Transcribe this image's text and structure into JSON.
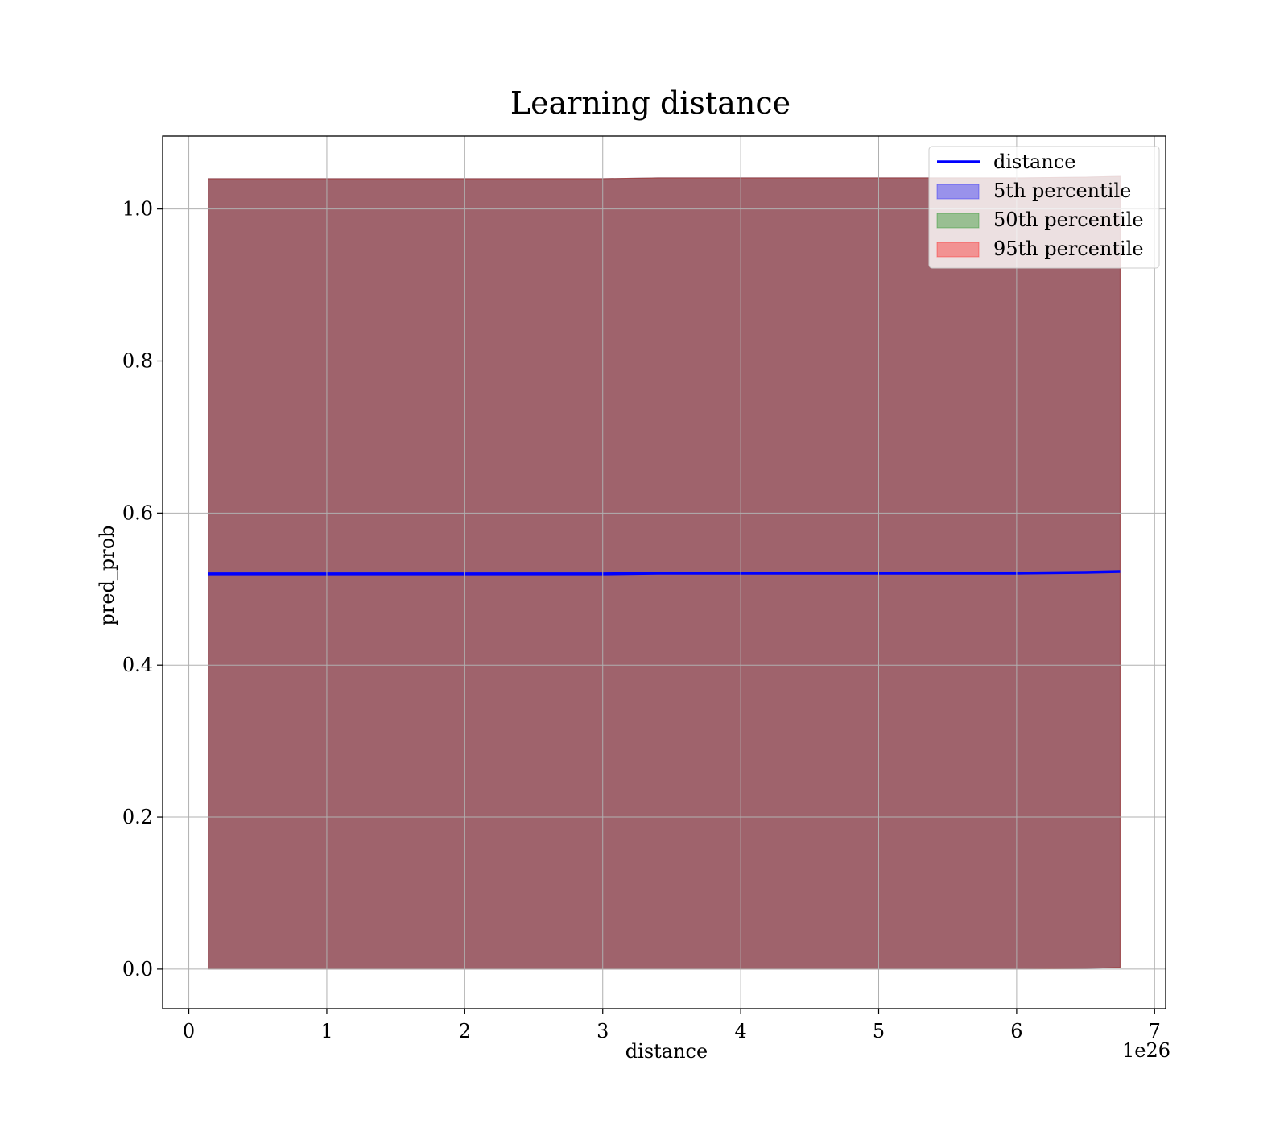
{
  "chart_data": {
    "type": "area",
    "title": "Learning distance",
    "xlabel": "distance",
    "ylabel": "pred_prob",
    "x_offset_label": "1e26",
    "xlim": [
      -0.19,
      7.08
    ],
    "ylim": [
      -0.052,
      1.096
    ],
    "x_ticks": [
      0,
      1,
      2,
      3,
      4,
      5,
      6,
      7
    ],
    "y_ticks": [
      0.0,
      0.2,
      0.4,
      0.6,
      0.8,
      1.0
    ],
    "y_tick_labels": [
      "0.0",
      "0.2",
      "0.4",
      "0.6",
      "0.8",
      "1.0"
    ],
    "grid": true,
    "legend_position": "top-right",
    "x": [
      0.14,
      0.5,
      1.0,
      1.5,
      2.0,
      2.5,
      3.0,
      3.4,
      4.0,
      4.5,
      5.0,
      5.5,
      6.0,
      6.5,
      6.75
    ],
    "series": [
      {
        "name": "distance",
        "kind": "line",
        "color": "#0000ff",
        "values": [
          0.52,
          0.52,
          0.52,
          0.52,
          0.52,
          0.52,
          0.52,
          0.521,
          0.521,
          0.521,
          0.521,
          0.521,
          0.521,
          0.522,
          0.523
        ]
      },
      {
        "name": "5th percentile",
        "kind": "band",
        "color": "#0000ff",
        "lower": [
          0.0,
          0.0,
          0.0,
          0.0,
          0.0,
          0.0,
          0.0,
          0.0,
          0.0,
          0.0,
          0.0,
          0.0,
          0.0,
          0.001,
          0.002
        ],
        "upper": [
          1.04,
          1.04,
          1.04,
          1.04,
          1.04,
          1.04,
          1.04,
          1.041,
          1.041,
          1.041,
          1.041,
          1.041,
          1.041,
          1.042,
          1.043
        ]
      },
      {
        "name": "50th percentile",
        "kind": "band",
        "color": "#008000",
        "lower": [
          0.0,
          0.0,
          0.0,
          0.0,
          0.0,
          0.0,
          0.0,
          0.0,
          0.0,
          0.0,
          0.0,
          0.0,
          0.0,
          0.001,
          0.002
        ],
        "upper": [
          1.04,
          1.04,
          1.04,
          1.04,
          1.04,
          1.04,
          1.04,
          1.041,
          1.041,
          1.041,
          1.041,
          1.041,
          1.041,
          1.042,
          1.043
        ]
      },
      {
        "name": "95th percentile",
        "kind": "band",
        "color": "#ff0000",
        "lower": [
          0.0,
          0.0,
          0.0,
          0.0,
          0.0,
          0.0,
          0.0,
          0.0,
          0.0,
          0.0,
          0.0,
          0.0,
          0.0,
          0.001,
          0.002
        ],
        "upper": [
          1.04,
          1.04,
          1.04,
          1.04,
          1.04,
          1.04,
          1.04,
          1.041,
          1.041,
          1.041,
          1.041,
          1.041,
          1.041,
          1.042,
          1.043
        ]
      }
    ]
  }
}
